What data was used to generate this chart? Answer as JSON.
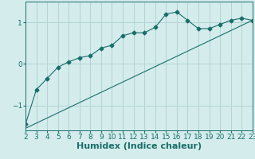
{
  "title": "",
  "xlabel": "Humidex (Indice chaleur)",
  "ylabel": "",
  "background_color": "#d4ecec",
  "grid_color": "#b2d4d4",
  "line_color": "#1a6e6a",
  "xlim": [
    2,
    23
  ],
  "ylim": [
    -1.6,
    1.5
  ],
  "yticks": [
    -1,
    0,
    1
  ],
  "xticks": [
    2,
    3,
    4,
    5,
    6,
    7,
    8,
    9,
    10,
    11,
    12,
    13,
    14,
    15,
    16,
    17,
    18,
    19,
    20,
    21,
    22,
    23
  ],
  "curve1_x": [
    2,
    3,
    4,
    5,
    6,
    7,
    8,
    9,
    10,
    11,
    12,
    13,
    14,
    15,
    16,
    17,
    18,
    19,
    20,
    21,
    22,
    23
  ],
  "curve1_y": [
    -1.45,
    -0.62,
    -0.35,
    -0.08,
    0.05,
    0.15,
    0.2,
    0.38,
    0.45,
    0.68,
    0.75,
    0.75,
    0.88,
    1.2,
    1.25,
    1.05,
    0.85,
    0.85,
    0.95,
    1.05,
    1.1,
    1.05
  ],
  "curve2_x": [
    2,
    23
  ],
  "curve2_y": [
    -1.55,
    1.05
  ],
  "marker": "D",
  "marker_size": 2.5,
  "fontsize_xlabel": 8,
  "fontsize_ticks": 6.5
}
